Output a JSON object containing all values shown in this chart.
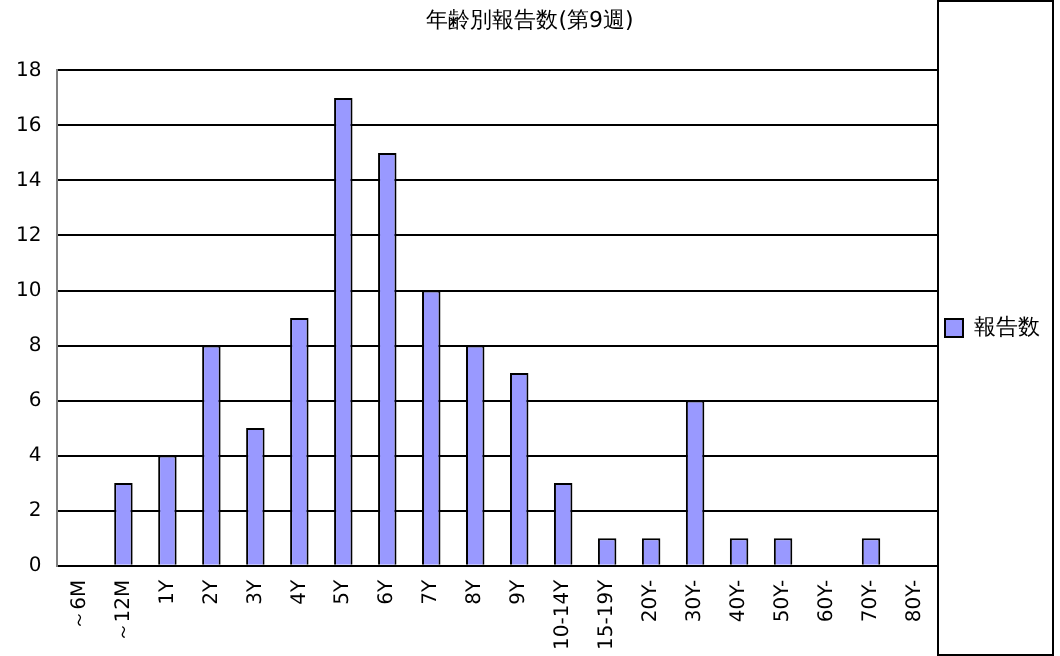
{
  "chart_data": {
    "type": "bar",
    "title": "年齢別報告数(第9週)",
    "categories": [
      "～6M",
      "～12M",
      "1Y",
      "2Y",
      "3Y",
      "4Y",
      "5Y",
      "6Y",
      "7Y",
      "8Y",
      "9Y",
      "10-14Y",
      "15-19Y",
      "20Y-",
      "30Y-",
      "40Y-",
      "50Y-",
      "60Y-",
      "70Y-",
      "80Y-"
    ],
    "series": [
      {
        "name": "報告数",
        "color": "#9999ff",
        "values": [
          0,
          3,
          4,
          8,
          5,
          9,
          17,
          15,
          10,
          8,
          7,
          3,
          1,
          1,
          6,
          1,
          1,
          0,
          1,
          0
        ]
      }
    ],
    "ylim": [
      0,
      18
    ],
    "yticks": [
      0,
      2,
      4,
      6,
      8,
      10,
      12,
      14,
      16,
      18
    ],
    "grid": "y",
    "legend": "right"
  }
}
